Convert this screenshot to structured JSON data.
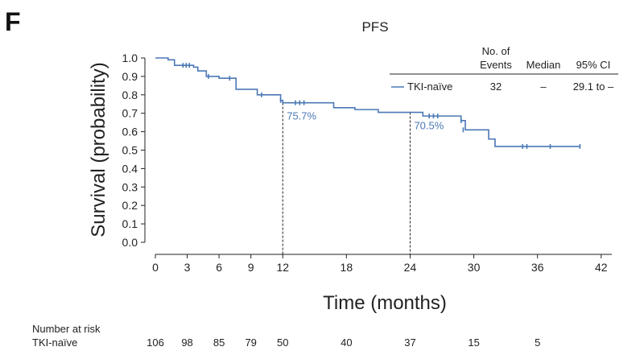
{
  "panel_letter": "F",
  "chart_data": {
    "type": "line",
    "title": "PFS",
    "xlabel": "Time (months)",
    "ylabel": "Survival (probability)",
    "xlim": [
      0,
      43
    ],
    "ylim": [
      0,
      1.0
    ],
    "x_ticks": [
      0,
      3,
      6,
      9,
      12,
      18,
      24,
      30,
      36,
      42
    ],
    "y_ticks": [
      0.0,
      0.1,
      0.2,
      0.3,
      0.4,
      0.5,
      0.6,
      0.7,
      0.8,
      0.9,
      1.0
    ],
    "grid": false,
    "line_color": "#4a78b5",
    "series": [
      {
        "name": "TKI-naïve",
        "steps": [
          [
            0,
            1.0
          ],
          [
            1.2,
            0.99
          ],
          [
            1.8,
            0.96
          ],
          [
            3.6,
            0.95
          ],
          [
            4.0,
            0.93
          ],
          [
            4.8,
            0.9
          ],
          [
            6.0,
            0.89
          ],
          [
            7.6,
            0.83
          ],
          [
            9.6,
            0.8
          ],
          [
            11.8,
            0.77
          ],
          [
            12.0,
            0.757
          ],
          [
            16.8,
            0.73
          ],
          [
            18.8,
            0.72
          ],
          [
            21.0,
            0.705
          ],
          [
            24.0,
            0.705
          ],
          [
            25.2,
            0.685
          ],
          [
            28.8,
            0.66
          ],
          [
            29.2,
            0.61
          ],
          [
            31.4,
            0.56
          ],
          [
            32.0,
            0.52
          ],
          [
            40.0,
            0.52
          ]
        ],
        "censored": [
          [
            2.6,
            0.96
          ],
          [
            2.9,
            0.96
          ],
          [
            3.2,
            0.96
          ],
          [
            5.0,
            0.9
          ],
          [
            7.0,
            0.89
          ],
          [
            10.0,
            0.8
          ],
          [
            11.8,
            0.77
          ],
          [
            13.2,
            0.757
          ],
          [
            13.6,
            0.757
          ],
          [
            14.0,
            0.757
          ],
          [
            25.8,
            0.685
          ],
          [
            26.2,
            0.685
          ],
          [
            26.6,
            0.685
          ],
          [
            28.8,
            0.66
          ],
          [
            29.0,
            0.61
          ],
          [
            34.6,
            0.52
          ],
          [
            35.0,
            0.52
          ],
          [
            37.2,
            0.52
          ],
          [
            40.0,
            0.52
          ]
        ]
      }
    ],
    "annotations": [
      {
        "x": 12,
        "y": 0.757,
        "text": "75.7%"
      },
      {
        "x": 24,
        "y": 0.705,
        "text": "70.5%"
      }
    ],
    "legend": {
      "position": "top-right",
      "headers": [
        "No. of",
        "Events",
        "Median",
        "95% CI"
      ],
      "rows": [
        {
          "label": "TKI-naïve",
          "events": "32",
          "median": "–",
          "ci": "29.1 to –"
        }
      ]
    },
    "risk_table": {
      "title": "Number at risk",
      "rows": [
        {
          "label": "TKI-naïve",
          "times": [
            0,
            3,
            6,
            9,
            12,
            18,
            24,
            30,
            36
          ],
          "values": [
            "106",
            "98",
            "85",
            "79",
            "50",
            "40",
            "37",
            "15",
            "5"
          ]
        }
      ]
    }
  }
}
